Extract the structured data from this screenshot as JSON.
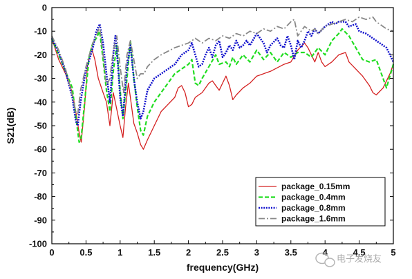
{
  "chart_data": {
    "type": "line",
    "xlabel": "frequency(GHz)",
    "ylabel": "S21(dB)",
    "xlim": [
      0,
      5
    ],
    "ylim": [
      -100,
      0
    ],
    "xticks": [
      0,
      0.5,
      1,
      1.5,
      2,
      2.5,
      3,
      3.5,
      4,
      4.5,
      5
    ],
    "xtick_labels": [
      "0",
      "0.5",
      "1",
      "1.5",
      "2",
      "2.5",
      "3",
      "3.5",
      "4",
      "4.5",
      "5"
    ],
    "yticks": [
      0,
      -10,
      -20,
      -30,
      -40,
      -50,
      -60,
      -70,
      -80,
      -90,
      -100
    ],
    "ytick_labels": [
      "0",
      "-10",
      "-20",
      "-30",
      "-40",
      "-50",
      "-60",
      "-70",
      "-80",
      "-90",
      "-100"
    ],
    "grid": false,
    "legend_position": "bottom-right",
    "series": [
      {
        "name": "package_0.15mm",
        "color": "#d42020",
        "dash": "solid",
        "points": [
          [
            0,
            -13
          ],
          [
            0.1,
            -22
          ],
          [
            0.2,
            -28
          ],
          [
            0.3,
            -36
          ],
          [
            0.35,
            -44
          ],
          [
            0.4,
            -53
          ],
          [
            0.43,
            -57
          ],
          [
            0.48,
            -42
          ],
          [
            0.52,
            -25
          ],
          [
            0.58,
            -17
          ],
          [
            0.63,
            -22
          ],
          [
            0.68,
            -30
          ],
          [
            0.75,
            -36
          ],
          [
            0.8,
            -40
          ],
          [
            0.85,
            -50
          ],
          [
            0.9,
            -36
          ],
          [
            0.95,
            -43
          ],
          [
            1.0,
            -50
          ],
          [
            1.04,
            -55
          ],
          [
            1.08,
            -42
          ],
          [
            1.12,
            -32
          ],
          [
            1.15,
            -38
          ],
          [
            1.2,
            -49
          ],
          [
            1.25,
            -53
          ],
          [
            1.3,
            -58
          ],
          [
            1.34,
            -60
          ],
          [
            1.4,
            -56
          ],
          [
            1.5,
            -50
          ],
          [
            1.6,
            -44
          ],
          [
            1.7,
            -41
          ],
          [
            1.8,
            -38
          ],
          [
            1.85,
            -34
          ],
          [
            1.9,
            -33
          ],
          [
            1.95,
            -36
          ],
          [
            2.0,
            -42
          ],
          [
            2.05,
            -41
          ],
          [
            2.1,
            -38
          ],
          [
            2.15,
            -37
          ],
          [
            2.2,
            -36
          ],
          [
            2.3,
            -32
          ],
          [
            2.35,
            -31
          ],
          [
            2.4,
            -33
          ],
          [
            2.45,
            -35
          ],
          [
            2.5,
            -32
          ],
          [
            2.55,
            -29
          ],
          [
            2.6,
            -33
          ],
          [
            2.65,
            -39
          ],
          [
            2.7,
            -37
          ],
          [
            2.8,
            -34
          ],
          [
            2.9,
            -32
          ],
          [
            3.0,
            -29
          ],
          [
            3.2,
            -27
          ],
          [
            3.4,
            -24
          ],
          [
            3.5,
            -23
          ],
          [
            3.6,
            -18
          ],
          [
            3.7,
            -15
          ],
          [
            3.75,
            -17
          ],
          [
            3.8,
            -20
          ],
          [
            3.85,
            -23
          ],
          [
            3.9,
            -19
          ],
          [
            3.95,
            -23
          ],
          [
            4.0,
            -25
          ],
          [
            4.1,
            -23
          ],
          [
            4.2,
            -20
          ],
          [
            4.3,
            -19
          ],
          [
            4.35,
            -23
          ],
          [
            4.45,
            -26
          ],
          [
            4.55,
            -29
          ],
          [
            4.65,
            -33
          ],
          [
            4.7,
            -36
          ],
          [
            4.75,
            -37
          ],
          [
            4.85,
            -34
          ],
          [
            4.95,
            -28
          ],
          [
            5.0,
            -24
          ]
        ]
      },
      {
        "name": "package_0.4mm",
        "color": "#22dd22",
        "dash": "dashed",
        "points": [
          [
            0,
            -13
          ],
          [
            0.1,
            -20
          ],
          [
            0.2,
            -27
          ],
          [
            0.3,
            -34
          ],
          [
            0.35,
            -46
          ],
          [
            0.4,
            -57
          ],
          [
            0.43,
            -55
          ],
          [
            0.48,
            -40
          ],
          [
            0.55,
            -20
          ],
          [
            0.6,
            -15
          ],
          [
            0.65,
            -13
          ],
          [
            0.7,
            -10
          ],
          [
            0.75,
            -22
          ],
          [
            0.8,
            -35
          ],
          [
            0.85,
            -44
          ],
          [
            0.9,
            -27
          ],
          [
            0.95,
            -16
          ],
          [
            1.0,
            -35
          ],
          [
            1.04,
            -47
          ],
          [
            1.1,
            -30
          ],
          [
            1.15,
            -14
          ],
          [
            1.2,
            -30
          ],
          [
            1.25,
            -42
          ],
          [
            1.3,
            -52
          ],
          [
            1.34,
            -54
          ],
          [
            1.4,
            -46
          ],
          [
            1.5,
            -40
          ],
          [
            1.6,
            -36
          ],
          [
            1.7,
            -32
          ],
          [
            1.8,
            -28
          ],
          [
            1.9,
            -26
          ],
          [
            2.0,
            -24
          ],
          [
            2.05,
            -22
          ],
          [
            2.1,
            -32
          ],
          [
            2.15,
            -33
          ],
          [
            2.2,
            -30
          ],
          [
            2.3,
            -25
          ],
          [
            2.4,
            -20
          ],
          [
            2.45,
            -24
          ],
          [
            2.55,
            -23
          ],
          [
            2.6,
            -25
          ],
          [
            2.65,
            -21
          ],
          [
            2.7,
            -24
          ],
          [
            2.8,
            -20
          ],
          [
            2.9,
            -23
          ],
          [
            3.0,
            -18
          ],
          [
            3.1,
            -22
          ],
          [
            3.2,
            -19
          ],
          [
            3.3,
            -23
          ],
          [
            3.4,
            -19
          ],
          [
            3.5,
            -21
          ],
          [
            3.6,
            -19
          ],
          [
            3.7,
            -19
          ],
          [
            3.8,
            -21
          ],
          [
            3.9,
            -17
          ],
          [
            4.0,
            -20
          ],
          [
            4.1,
            -14
          ],
          [
            4.2,
            -11
          ],
          [
            4.25,
            -9
          ],
          [
            4.35,
            -12
          ],
          [
            4.45,
            -17
          ],
          [
            4.55,
            -22
          ],
          [
            4.65,
            -23
          ],
          [
            4.75,
            -22
          ],
          [
            4.85,
            -30
          ],
          [
            4.9,
            -34
          ],
          [
            5.0,
            -24
          ]
        ]
      },
      {
        "name": "package_0.8mm",
        "color": "#1010cc",
        "dash": "dotted",
        "points": [
          [
            0,
            -13
          ],
          [
            0.1,
            -19
          ],
          [
            0.2,
            -27
          ],
          [
            0.3,
            -38
          ],
          [
            0.35,
            -48
          ],
          [
            0.38,
            -50
          ],
          [
            0.42,
            -40
          ],
          [
            0.5,
            -26
          ],
          [
            0.55,
            -22
          ],
          [
            0.6,
            -17
          ],
          [
            0.65,
            -10
          ],
          [
            0.7,
            -7
          ],
          [
            0.75,
            -15
          ],
          [
            0.8,
            -28
          ],
          [
            0.85,
            -40
          ],
          [
            0.9,
            -20
          ],
          [
            0.93,
            -12
          ],
          [
            0.97,
            -25
          ],
          [
            1.0,
            -38
          ],
          [
            1.04,
            -46
          ],
          [
            1.1,
            -25
          ],
          [
            1.15,
            -16
          ],
          [
            1.2,
            -30
          ],
          [
            1.25,
            -40
          ],
          [
            1.3,
            -47
          ],
          [
            1.34,
            -44
          ],
          [
            1.4,
            -35
          ],
          [
            1.5,
            -30
          ],
          [
            1.6,
            -28
          ],
          [
            1.7,
            -26
          ],
          [
            1.8,
            -24
          ],
          [
            1.9,
            -20
          ],
          [
            2.0,
            -18
          ],
          [
            2.05,
            -15
          ],
          [
            2.1,
            -20
          ],
          [
            2.15,
            -25
          ],
          [
            2.2,
            -24
          ],
          [
            2.25,
            -20
          ],
          [
            2.3,
            -17
          ],
          [
            2.35,
            -21
          ],
          [
            2.4,
            -16
          ],
          [
            2.45,
            -14
          ],
          [
            2.5,
            -21
          ],
          [
            2.55,
            -19
          ],
          [
            2.6,
            -16
          ],
          [
            2.65,
            -18
          ],
          [
            2.7,
            -14
          ],
          [
            2.75,
            -17
          ],
          [
            2.8,
            -16
          ],
          [
            2.85,
            -14
          ],
          [
            2.9,
            -16
          ],
          [
            3.0,
            -11
          ],
          [
            3.1,
            -15
          ],
          [
            3.15,
            -19
          ],
          [
            3.2,
            -16
          ],
          [
            3.3,
            -13
          ],
          [
            3.35,
            -16
          ],
          [
            3.4,
            -17
          ],
          [
            3.45,
            -12
          ],
          [
            3.5,
            -16
          ],
          [
            3.55,
            -22
          ],
          [
            3.6,
            -14
          ],
          [
            3.65,
            -17
          ],
          [
            3.7,
            -14
          ],
          [
            3.75,
            -10
          ],
          [
            3.8,
            -12
          ],
          [
            3.85,
            -9
          ],
          [
            3.9,
            -11
          ],
          [
            4.0,
            -8
          ],
          [
            4.1,
            -6
          ],
          [
            4.15,
            -7
          ],
          [
            4.2,
            -6
          ],
          [
            4.3,
            -6
          ],
          [
            4.35,
            -8
          ],
          [
            4.45,
            -7
          ],
          [
            4.5,
            -10
          ],
          [
            4.6,
            -11
          ],
          [
            4.7,
            -13
          ],
          [
            4.8,
            -15
          ],
          [
            4.9,
            -17
          ],
          [
            5.0,
            -23
          ]
        ]
      },
      {
        "name": "package_1.6mm",
        "color": "#888888",
        "dash": "dashdot",
        "points": [
          [
            0,
            -12
          ],
          [
            0.1,
            -18
          ],
          [
            0.2,
            -26
          ],
          [
            0.3,
            -37
          ],
          [
            0.35,
            -44
          ],
          [
            0.38,
            -45
          ],
          [
            0.42,
            -35
          ],
          [
            0.5,
            -25
          ],
          [
            0.55,
            -20
          ],
          [
            0.6,
            -15
          ],
          [
            0.65,
            -12
          ],
          [
            0.7,
            -8
          ],
          [
            0.75,
            -20
          ],
          [
            0.8,
            -33
          ],
          [
            0.85,
            -30
          ],
          [
            0.9,
            -18
          ],
          [
            0.95,
            -12
          ],
          [
            1.0,
            -25
          ],
          [
            1.05,
            -36
          ],
          [
            1.1,
            -20
          ],
          [
            1.15,
            -14
          ],
          [
            1.2,
            -22
          ],
          [
            1.25,
            -30
          ],
          [
            1.3,
            -28
          ],
          [
            1.35,
            -28
          ],
          [
            1.4,
            -25
          ],
          [
            1.5,
            -22
          ],
          [
            1.6,
            -20
          ],
          [
            1.8,
            -17
          ],
          [
            2.0,
            -15
          ],
          [
            2.1,
            -13
          ],
          [
            2.2,
            -15
          ],
          [
            2.3,
            -13
          ],
          [
            2.4,
            -14
          ],
          [
            2.5,
            -12
          ],
          [
            2.6,
            -13
          ],
          [
            2.7,
            -11
          ],
          [
            2.8,
            -12
          ],
          [
            2.9,
            -10
          ],
          [
            3.0,
            -11
          ],
          [
            3.1,
            -9
          ],
          [
            3.2,
            -10
          ],
          [
            3.3,
            -8
          ],
          [
            3.4,
            -9
          ],
          [
            3.5,
            -6
          ],
          [
            3.55,
            -5
          ],
          [
            3.6,
            -12
          ],
          [
            3.65,
            -10
          ],
          [
            3.7,
            -8
          ],
          [
            3.8,
            -10
          ],
          [
            3.85,
            -9
          ],
          [
            3.9,
            -11
          ],
          [
            4.0,
            -8
          ],
          [
            4.1,
            -7
          ],
          [
            4.2,
            -6
          ],
          [
            4.3,
            -5
          ],
          [
            4.4,
            -6
          ],
          [
            4.5,
            -4
          ],
          [
            4.6,
            -5
          ],
          [
            4.7,
            -4
          ],
          [
            4.75,
            -6
          ],
          [
            4.8,
            -7
          ],
          [
            4.9,
            -9
          ],
          [
            5.0,
            -10
          ]
        ]
      }
    ]
  },
  "watermark": {
    "text": "电子发烧友",
    "icon": "wechat-logo-icon"
  }
}
